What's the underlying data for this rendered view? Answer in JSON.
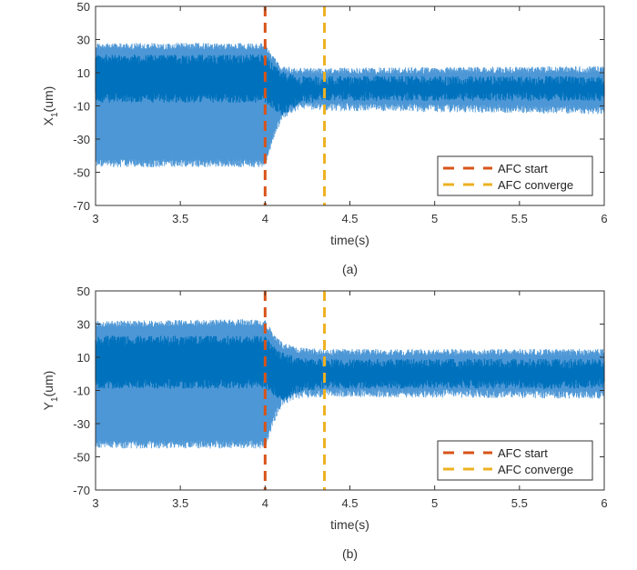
{
  "chart_data": [
    {
      "type": "line",
      "panel_label": "(a)",
      "xlabel": "time(s)",
      "ylabel_main": "X",
      "ylabel_sub": "1",
      "ylabel_unit": "(um)",
      "xlim": [
        3,
        6
      ],
      "ylim": [
        -70,
        50
      ],
      "xticks": [
        "3",
        "3.5",
        "4",
        "4.5",
        "5",
        "5.5",
        "6"
      ],
      "yticks": [
        "50",
        "30",
        "10",
        "-10",
        "-30",
        "-50",
        "-70"
      ],
      "grid": false,
      "legend_placement": "bottom-right",
      "signal_color": "#0072BD",
      "signal_envelope": {
        "t": [
          3,
          4.0,
          4.05,
          4.1,
          4.2,
          4.35,
          6
        ],
        "upper": [
          28,
          28,
          20,
          14,
          13,
          13,
          14
        ],
        "lower": [
          -47,
          -47,
          -30,
          -18,
          -12,
          -13,
          -15
        ],
        "core_upper": [
          18,
          18,
          12,
          8,
          5,
          5,
          5
        ],
        "core_lower": [
          -5,
          -5,
          -9,
          -13,
          -6,
          -4,
          -4
        ]
      },
      "vlines": [
        {
          "name": "AFC start",
          "x": 4.0,
          "color": "#D95319"
        },
        {
          "name": "AFC converge",
          "x": 4.35,
          "color": "#EDB120"
        }
      ]
    },
    {
      "type": "line",
      "panel_label": "(b)",
      "xlabel": "time(s)",
      "ylabel_main": "Y",
      "ylabel_sub": "1",
      "ylabel_unit": "(um)",
      "xlim": [
        3,
        6
      ],
      "ylim": [
        -70,
        50
      ],
      "xticks": [
        "3",
        "3.5",
        "4",
        "4.5",
        "5",
        "5.5",
        "6"
      ],
      "yticks": [
        "50",
        "30",
        "10",
        "-10",
        "-30",
        "-50",
        "-70"
      ],
      "grid": false,
      "legend_placement": "bottom-right",
      "signal_color": "#0072BD",
      "signal_envelope": {
        "t": [
          3,
          4.0,
          4.05,
          4.1,
          4.2,
          4.35,
          6
        ],
        "upper": [
          32,
          33,
          24,
          19,
          16,
          15,
          15
        ],
        "lower": [
          -45,
          -45,
          -30,
          -19,
          -15,
          -14,
          -15
        ],
        "core_upper": [
          20,
          20,
          14,
          10,
          7,
          6,
          6
        ],
        "core_lower": [
          -6,
          -6,
          -10,
          -14,
          -8,
          -6,
          -6
        ]
      },
      "vlines": [
        {
          "name": "AFC start",
          "x": 4.0,
          "color": "#D95319"
        },
        {
          "name": "AFC converge",
          "x": 4.35,
          "color": "#EDB120"
        }
      ]
    }
  ]
}
